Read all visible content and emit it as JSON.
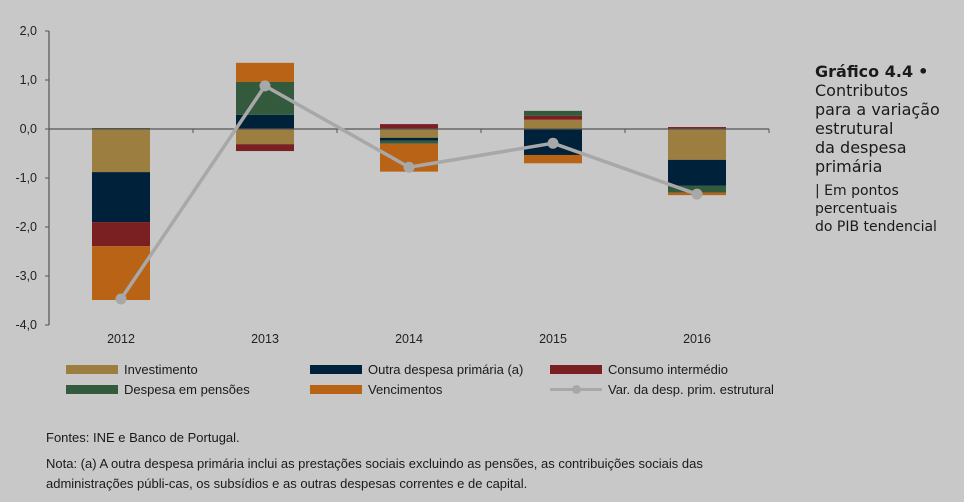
{
  "chart_data": {
    "type": "bar",
    "stacked": true,
    "title": "Gráfico 4.4 • Contributos para a variação estrutural da despesa primária",
    "subtitle": "| Em pontos percentuais do PIB tendencial",
    "xlabel": "",
    "ylabel": "",
    "ylim": [
      -4.0,
      2.0
    ],
    "yticks": [
      "2,0",
      "1,0",
      "0,0",
      "-1,0",
      "-2,0",
      "-3,0",
      "-4,0"
    ],
    "ytick_values": [
      2,
      1,
      0,
      -1,
      -2,
      -3,
      -4
    ],
    "grid": false,
    "legend_position": "bottom",
    "categories": [
      "2012",
      "2013",
      "2014",
      "2015",
      "2016"
    ],
    "series": [
      {
        "name": "Investimento",
        "color": "#9c7e40",
        "values": [
          -0.88,
          -0.31,
          -0.18,
          0.19,
          -0.63
        ]
      },
      {
        "name": "Outra despesa primária (a)",
        "color": "#00213a",
        "values": [
          -1.02,
          0.29,
          -0.06,
          -0.53,
          -0.53
        ]
      },
      {
        "name": "Consumo intermédio",
        "color": "#7a2022",
        "values": [
          -0.49,
          -0.14,
          0.1,
          0.08,
          0.04
        ]
      },
      {
        "name": "Despesa em pensões",
        "color": "#335a3c",
        "values": [
          0.02,
          0.67,
          -0.06,
          0.1,
          -0.14
        ]
      },
      {
        "name": "Vencimentos",
        "color": "#b86316",
        "values": [
          -1.1,
          0.39,
          -0.57,
          -0.17,
          -0.05
        ]
      }
    ],
    "line_series": {
      "name": "Var. da desp. prim. estrutural",
      "color": "#a8a8a8",
      "values": [
        -3.47,
        0.88,
        -0.78,
        -0.29,
        -1.33
      ]
    }
  },
  "title_block": {
    "bold": "Gráfico 4.4",
    "bullet": "•",
    "lines": [
      "Contributos",
      "para a variação",
      "estrutural",
      "da despesa",
      "primária"
    ],
    "sub_lines": [
      "| Em pontos",
      "percentuais",
      "do PIB tendencial"
    ]
  },
  "notes": {
    "sources": "Fontes: INE e Banco de Portugal.",
    "note": "Nota: (a) A outra despesa primária inclui as prestações sociais excluindo as pensões, as contribuições sociais das administrações públi-cas, os subsídios e as outras despesas correntes e de capital."
  }
}
